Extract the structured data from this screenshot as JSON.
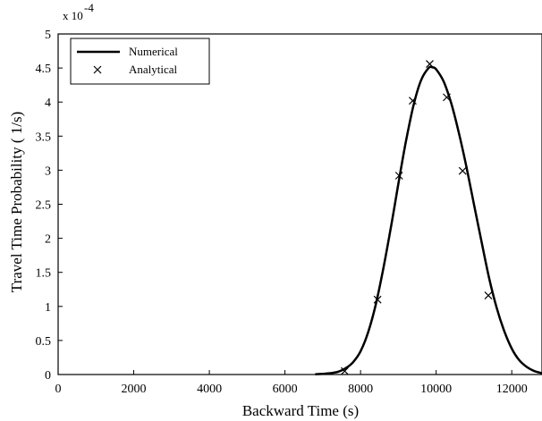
{
  "chart_data": {
    "type": "line",
    "title": "",
    "xlabel": "Backward Time (s)",
    "ylabel": "Travel Time Probability ( 1/s)",
    "y_scale_label": "x 10",
    "y_scale_exponent": "-4",
    "xlim": [
      0,
      12800
    ],
    "ylim": [
      0,
      5
    ],
    "xticks": [
      0,
      2000,
      4000,
      6000,
      8000,
      10000,
      12000
    ],
    "yticks": [
      0,
      0.5,
      1,
      1.5,
      2,
      2.5,
      3,
      3.5,
      4,
      4.5,
      5
    ],
    "ytick_labels": [
      "0",
      "0.5",
      "1",
      "1.5",
      "2",
      "2.5",
      "3",
      "3.5",
      "4",
      "4.5",
      "5"
    ],
    "grid": false,
    "legend_position": "top-left",
    "series": [
      {
        "name": "Numerical",
        "style": "solid-line",
        "color": "#000000",
        "x": [
          6800,
          7000,
          7200,
          7400,
          7600,
          7800,
          8000,
          8200,
          8400,
          8600,
          8800,
          9000,
          9200,
          9400,
          9600,
          9800,
          9900,
          10000,
          10200,
          10400,
          10600,
          10800,
          11000,
          11200,
          11400,
          11600,
          11800,
          12000,
          12200,
          12400,
          12600,
          12800
        ],
        "y": [
          0.005,
          0.01,
          0.02,
          0.04,
          0.09,
          0.18,
          0.34,
          0.62,
          1.02,
          1.55,
          2.15,
          2.8,
          3.42,
          3.95,
          4.32,
          4.5,
          4.51,
          4.48,
          4.3,
          3.98,
          3.55,
          3.05,
          2.5,
          1.95,
          1.42,
          0.98,
          0.64,
          0.38,
          0.21,
          0.11,
          0.05,
          0.02
        ]
      },
      {
        "name": "Analytical",
        "style": "x-marker",
        "color": "#000000",
        "x": [
          7580,
          8450,
          9020,
          9380,
          9830,
          10280,
          10700,
          11380
        ],
        "y": [
          0.05,
          1.1,
          2.92,
          4.02,
          4.56,
          4.07,
          2.99,
          1.16
        ]
      }
    ]
  }
}
